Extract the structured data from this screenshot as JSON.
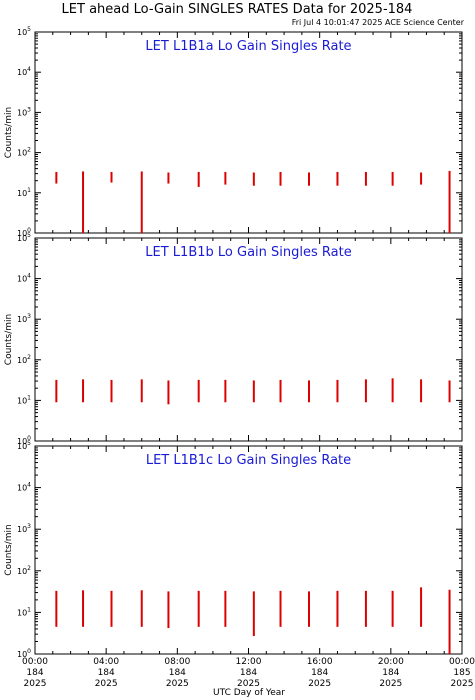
{
  "header": {
    "title": "LET ahead Lo-Gain SINGLES RATES Data for 2025-184",
    "timestamp": "Fri Jul  4 10:01:47 2025 ACE Science Center"
  },
  "chart_data": [
    {
      "type": "line",
      "title": "LET L1B1a Lo Gain Singles Rate",
      "ylabel": "Counts/min",
      "xlabel": "UTC Day of Year",
      "yscale": "log",
      "ylim": [
        1,
        100000
      ],
      "xlim": [
        0,
        24
      ],
      "y_tick_labels": [
        "10^0",
        "10^1",
        "10^2",
        "10^3",
        "10^4",
        "10^5"
      ],
      "series": [
        {
          "color": "#dd0000",
          "x": [
            1.2,
            2.7,
            4.3,
            6.0,
            7.5,
            9.2,
            10.7,
            12.3,
            13.8,
            15.4,
            17.0,
            18.6,
            20.1,
            21.7,
            23.3
          ],
          "y_high": [
            33,
            34,
            33,
            34,
            32,
            33,
            33,
            32,
            33,
            32,
            33,
            33,
            33,
            32,
            35
          ],
          "y_low": [
            17,
            1,
            18,
            1,
            17,
            14,
            16,
            15,
            15,
            15,
            15,
            15,
            15,
            16,
            1
          ]
        }
      ]
    },
    {
      "type": "line",
      "title": "LET L1B1b Lo Gain Singles Rate",
      "ylabel": "Counts/min",
      "xlabel": "UTC Day of Year",
      "yscale": "log",
      "ylim": [
        1,
        100000
      ],
      "xlim": [
        0,
        24
      ],
      "y_tick_labels": [
        "10^0",
        "10^1",
        "10^2",
        "10^3",
        "10^4",
        "10^5"
      ],
      "series": [
        {
          "color": "#dd0000",
          "x": [
            1.2,
            2.7,
            4.3,
            6.0,
            7.5,
            9.2,
            10.7,
            12.3,
            13.8,
            15.4,
            17.0,
            18.6,
            20.1,
            21.7,
            23.3
          ],
          "y_high": [
            32,
            33,
            32,
            33,
            31,
            32,
            32,
            31,
            32,
            31,
            32,
            33,
            35,
            33,
            31
          ],
          "y_low": [
            9,
            9,
            9,
            9,
            8,
            9,
            9,
            9,
            9,
            9,
            9,
            9,
            9,
            9,
            9
          ]
        }
      ]
    },
    {
      "type": "line",
      "title": "LET L1B1c Lo Gain Singles Rate",
      "ylabel": "Counts/min",
      "xlabel": "UTC Day of Year",
      "yscale": "log",
      "ylim": [
        1,
        100000
      ],
      "xlim": [
        0,
        24
      ],
      "y_tick_labels": [
        "10^0",
        "10^1",
        "10^2",
        "10^3",
        "10^4",
        "10^5"
      ],
      "series": [
        {
          "color": "#dd0000",
          "x": [
            1.2,
            2.7,
            4.3,
            6.0,
            7.5,
            9.2,
            10.7,
            12.3,
            13.8,
            15.4,
            17.0,
            18.6,
            20.1,
            21.7,
            23.3
          ],
          "y_high": [
            33,
            34,
            33,
            34,
            32,
            33,
            33,
            32,
            33,
            32,
            33,
            33,
            33,
            40,
            35
          ],
          "y_low": [
            4.5,
            4.5,
            4.5,
            4.5,
            4.2,
            4.5,
            4.5,
            2.7,
            4.5,
            4.5,
            4.5,
            4.5,
            4.5,
            4.5,
            1
          ]
        }
      ]
    }
  ],
  "x_axis": {
    "tick_labels": [
      {
        "x": 0,
        "time": "00:00",
        "day": "184",
        "year": "2025"
      },
      {
        "x": 4,
        "time": "04:00",
        "day": "184",
        "year": "2025"
      },
      {
        "x": 8,
        "time": "08:00",
        "day": "184",
        "year": "2025"
      },
      {
        "x": 12,
        "time": "12:00",
        "day": "184",
        "year": "2025"
      },
      {
        "x": 16,
        "time": "16:00",
        "day": "184",
        "year": "2025"
      },
      {
        "x": 20,
        "time": "20:00",
        "day": "184",
        "year": "2025"
      },
      {
        "x": 24,
        "time": "00:00",
        "day": "185",
        "year": "2025"
      }
    ],
    "label": "UTC Day of Year"
  }
}
